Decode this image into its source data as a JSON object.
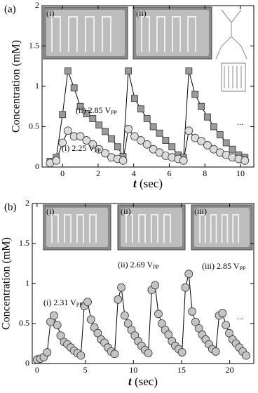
{
  "chart_data": [
    {
      "type": "line",
      "panel": "(a)",
      "ylabel": "Concentration (mM)",
      "xlabel_var": "t",
      "xlabel_unit": "(sec)",
      "xlim": [
        -1.15,
        10.75
      ],
      "xticks": [
        0,
        2,
        4,
        6,
        8,
        10
      ],
      "ylim": [
        0,
        2
      ],
      "yticks": [
        0,
        0.5,
        1,
        1.5,
        2
      ],
      "insets": [
        {
          "label": "(i)"
        },
        {
          "label": "(ii)"
        }
      ],
      "annotations": [
        {
          "text": "(ii) 2.85 V",
          "sub": "PP"
        },
        {
          "text": "(i) 2.25 V",
          "sub": "PP"
        },
        {
          "text": "..."
        }
      ],
      "series": [
        {
          "marker": "square",
          "color": "#9a9a9a",
          "x": [
            -0.7,
            -0.35,
            0,
            0.3,
            0.65,
            1.0,
            1.35,
            1.7,
            2.05,
            2.4,
            2.75,
            3.1,
            3.4,
            3.7,
            4.05,
            4.4,
            4.75,
            5.1,
            5.45,
            5.8,
            6.15,
            6.5,
            6.8,
            7.1,
            7.45,
            7.8,
            8.15,
            8.5,
            8.85,
            9.2,
            9.55,
            9.9,
            10.25
          ],
          "values": [
            0.07,
            0.12,
            0.65,
            1.19,
            0.98,
            0.75,
            0.66,
            0.6,
            0.52,
            0.44,
            0.35,
            0.25,
            0.13,
            1.19,
            0.85,
            0.72,
            0.6,
            0.5,
            0.42,
            0.33,
            0.25,
            0.15,
            0.12,
            1.19,
            0.9,
            0.75,
            0.62,
            0.5,
            0.4,
            0.3,
            0.22,
            0.15,
            0.12
          ]
        },
        {
          "marker": "circle",
          "color": "#dcdcdc",
          "x": [
            -0.7,
            -0.35,
            0,
            0.3,
            0.65,
            1.0,
            1.35,
            1.7,
            2.05,
            2.4,
            2.75,
            3.1,
            3.4,
            3.7,
            4.05,
            4.4,
            4.75,
            5.1,
            5.45,
            5.8,
            6.15,
            6.5,
            6.8,
            7.1,
            7.45,
            7.8,
            8.15,
            8.5,
            8.85,
            9.2,
            9.55,
            9.9,
            10.25
          ],
          "values": [
            0.05,
            0.08,
            0.3,
            0.45,
            0.38,
            0.38,
            0.33,
            0.28,
            0.22,
            0.17,
            0.12,
            0.1,
            0.08,
            0.47,
            0.38,
            0.33,
            0.28,
            0.22,
            0.18,
            0.14,
            0.12,
            0.1,
            0.08,
            0.45,
            0.36,
            0.32,
            0.27,
            0.22,
            0.18,
            0.15,
            0.12,
            0.1,
            0.08
          ]
        }
      ]
    },
    {
      "type": "line",
      "panel": "(b)",
      "ylabel": "Concentration (mM)",
      "xlabel_var": "t",
      "xlabel_unit": "(sec)",
      "xlim": [
        -0.5,
        22.5
      ],
      "xticks": [
        0,
        5,
        10,
        15,
        20
      ],
      "ylim": [
        0,
        2
      ],
      "yticks": [
        0,
        0.5,
        1,
        1.5,
        2
      ],
      "insets": [
        {
          "label": "(i)"
        },
        {
          "label": "(ii)"
        },
        {
          "label": "(iii)"
        }
      ],
      "annotations": [
        {
          "text": "(i) 2.31 V",
          "sub": "PP"
        },
        {
          "text": "(ii) 2.69 V",
          "sub": "PP"
        },
        {
          "text": "(iii) 2.85 V",
          "sub": "PP"
        },
        {
          "text": "..."
        }
      ],
      "series": [
        {
          "marker": "circle",
          "color": "#c4c4c4",
          "x": [
            0,
            0.35,
            0.7,
            1.05,
            1.4,
            1.75,
            2.1,
            2.45,
            2.8,
            3.15,
            3.5,
            3.85,
            4.2,
            4.55,
            4.9,
            5.25,
            5.6,
            5.95,
            6.3,
            6.65,
            7.0,
            7.35,
            7.7,
            8.05,
            8.4,
            8.75,
            9.1,
            9.45,
            9.8,
            10.15,
            10.5,
            10.85,
            11.2,
            11.55,
            11.9,
            12.25,
            12.6,
            12.95,
            13.3,
            13.65,
            14.0,
            14.35,
            14.7,
            15.05,
            15.4,
            15.75,
            16.1,
            16.45,
            16.8,
            17.15,
            17.5,
            17.85,
            18.2,
            18.55,
            18.9,
            19.25,
            19.6,
            19.95,
            20.3,
            20.65,
            21.0,
            21.35,
            21.7
          ],
          "values": [
            0.05,
            0.06,
            0.08,
            0.14,
            0.52,
            0.6,
            0.48,
            0.35,
            0.27,
            0.24,
            0.2,
            0.16,
            0.13,
            0.1,
            0.72,
            0.77,
            0.55,
            0.45,
            0.38,
            0.3,
            0.26,
            0.2,
            0.15,
            0.12,
            0.8,
            0.95,
            0.6,
            0.5,
            0.42,
            0.35,
            0.28,
            0.22,
            0.17,
            0.13,
            0.92,
            0.98,
            0.62,
            0.5,
            0.42,
            0.36,
            0.28,
            0.22,
            0.18,
            0.14,
            0.95,
            1.12,
            0.65,
            0.52,
            0.44,
            0.36,
            0.3,
            0.24,
            0.18,
            0.15,
            0.6,
            0.63,
            0.48,
            0.38,
            0.3,
            0.25,
            0.2,
            0.15,
            0.1
          ]
        }
      ]
    }
  ]
}
